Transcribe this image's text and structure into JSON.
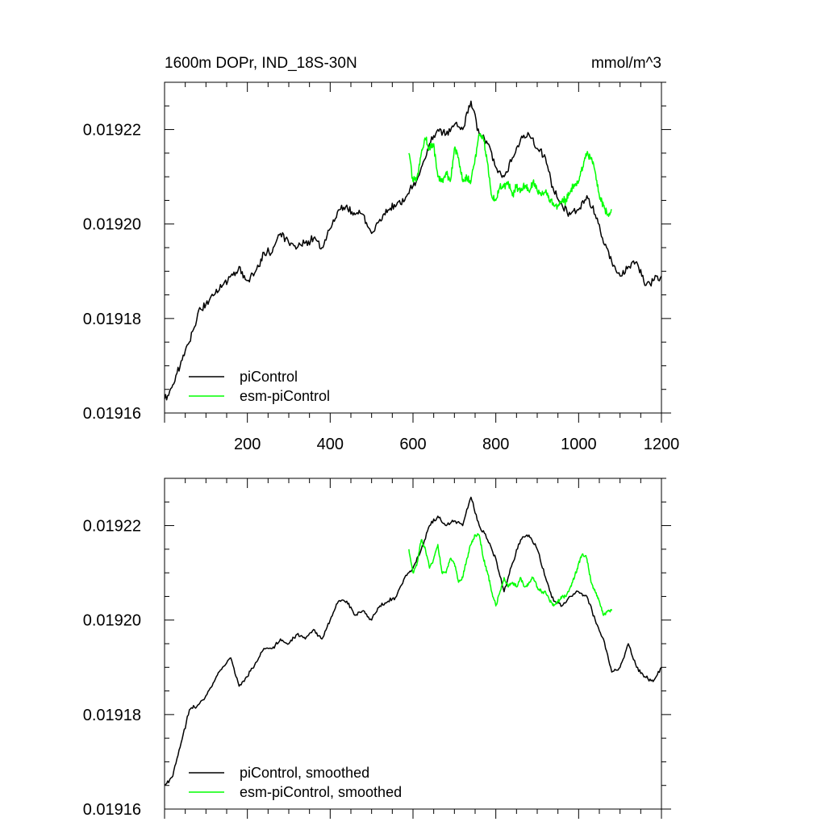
{
  "chart_data": [
    {
      "type": "line",
      "title": "1600m DOPr, IND_18S-30N",
      "units": "mmol/m^3",
      "xlim": [
        0,
        1200
      ],
      "ylim": [
        0.01916,
        0.01923
      ],
      "xticks": [
        200,
        400,
        600,
        800,
        1000,
        1200
      ],
      "xtick_labels": [
        "200",
        "400",
        "600",
        "800",
        "1000",
        "1200"
      ],
      "yticks": [
        0.01916,
        0.01918,
        0.0192,
        0.01922
      ],
      "ytick_labels": [
        "0.01916",
        "0.01918",
        "0.01920",
        "0.01922"
      ],
      "legend_position": "bottom-left",
      "series": [
        {
          "name": "piControl",
          "color": "#000000",
          "x": [
            0,
            20,
            40,
            60,
            80,
            100,
            120,
            140,
            160,
            180,
            200,
            220,
            240,
            260,
            280,
            300,
            320,
            340,
            360,
            380,
            400,
            420,
            440,
            460,
            480,
            500,
            520,
            540,
            560,
            580,
            600,
            620,
            640,
            660,
            680,
            700,
            720,
            740,
            760,
            780,
            800,
            820,
            840,
            860,
            880,
            900,
            920,
            940,
            960,
            980,
            1000,
            1020,
            1040,
            1060,
            1080,
            1100,
            1120,
            1140,
            1160,
            1180,
            1200
          ],
          "y": [
            0.019163,
            0.019166,
            0.019171,
            0.019175,
            0.019181,
            0.019183,
            0.019185,
            0.019187,
            0.019189,
            0.019191,
            0.019188,
            0.01919,
            0.019194,
            0.019194,
            0.019198,
            0.019196,
            0.019195,
            0.019196,
            0.019197,
            0.019195,
            0.019199,
            0.019203,
            0.019204,
            0.019202,
            0.019202,
            0.019198,
            0.019201,
            0.019203,
            0.019204,
            0.019205,
            0.019208,
            0.019212,
            0.019217,
            0.01922,
            0.019219,
            0.019221,
            0.01922,
            0.019226,
            0.019219,
            0.019217,
            0.019212,
            0.01921,
            0.019214,
            0.019218,
            0.019219,
            0.019216,
            0.019214,
            0.019207,
            0.019204,
            0.019202,
            0.019203,
            0.019206,
            0.019202,
            0.019196,
            0.019192,
            0.019189,
            0.019191,
            0.019192,
            0.019187,
            0.019188,
            0.019189
          ]
        },
        {
          "name": "esm-piControl",
          "color": "#00ff00",
          "x": [
            590,
            600,
            610,
            620,
            630,
            640,
            650,
            660,
            670,
            680,
            690,
            700,
            710,
            720,
            730,
            740,
            750,
            760,
            770,
            780,
            790,
            800,
            810,
            820,
            830,
            840,
            850,
            860,
            870,
            880,
            890,
            900,
            910,
            920,
            930,
            940,
            950,
            960,
            970,
            980,
            990,
            1000,
            1010,
            1020,
            1030,
            1040,
            1050,
            1060,
            1070,
            1080
          ],
          "y": [
            0.019215,
            0.019209,
            0.01921,
            0.019215,
            0.019218,
            0.019216,
            0.019217,
            0.01921,
            0.019209,
            0.019211,
            0.019209,
            0.019216,
            0.019214,
            0.019209,
            0.01921,
            0.019209,
            0.019214,
            0.019219,
            0.019218,
            0.019213,
            0.019206,
            0.019205,
            0.019208,
            0.019208,
            0.019209,
            0.019206,
            0.019208,
            0.019207,
            0.019208,
            0.019207,
            0.019209,
            0.019207,
            0.019206,
            0.019207,
            0.019205,
            0.019204,
            0.019204,
            0.019205,
            0.019205,
            0.019207,
            0.019208,
            0.019209,
            0.019212,
            0.019215,
            0.019214,
            0.019211,
            0.019206,
            0.019204,
            0.019202,
            0.019203
          ]
        }
      ]
    },
    {
      "type": "line",
      "xlim": [
        0,
        1200
      ],
      "ylim": [
        0.01916,
        0.01923
      ],
      "yticks": [
        0.01916,
        0.01918,
        0.0192,
        0.01922
      ],
      "ytick_labels": [
        "0.01916",
        "0.01918",
        "0.01920",
        "0.01922"
      ],
      "legend_position": "bottom-left",
      "series": [
        {
          "name": "piControl, smoothed",
          "color": "#000000",
          "x": [
            0,
            20,
            40,
            60,
            80,
            100,
            120,
            140,
            160,
            180,
            200,
            220,
            240,
            260,
            280,
            300,
            320,
            340,
            360,
            380,
            400,
            420,
            440,
            460,
            480,
            500,
            520,
            540,
            560,
            580,
            600,
            620,
            640,
            660,
            680,
            700,
            720,
            740,
            760,
            780,
            800,
            820,
            840,
            860,
            880,
            900,
            920,
            940,
            960,
            980,
            1000,
            1020,
            1040,
            1060,
            1080,
            1100,
            1120,
            1140,
            1160,
            1180,
            1200
          ],
          "y": [
            0.019165,
            0.019167,
            0.019174,
            0.019181,
            0.019182,
            0.019184,
            0.019187,
            0.01919,
            0.019192,
            0.019186,
            0.019188,
            0.019191,
            0.019194,
            0.019194,
            0.019196,
            0.019195,
            0.019197,
            0.019196,
            0.019198,
            0.019196,
            0.0192,
            0.019204,
            0.019204,
            0.019201,
            0.019202,
            0.0192,
            0.019203,
            0.019204,
            0.019205,
            0.019209,
            0.019211,
            0.019215,
            0.01922,
            0.019222,
            0.01922,
            0.019221,
            0.01922,
            0.019226,
            0.01922,
            0.019217,
            0.019213,
            0.019206,
            0.019212,
            0.019217,
            0.019218,
            0.019215,
            0.019209,
            0.019204,
            0.019203,
            0.019205,
            0.019206,
            0.019205,
            0.0192,
            0.019196,
            0.019189,
            0.01919,
            0.019195,
            0.01919,
            0.019188,
            0.019187,
            0.01919
          ]
        },
        {
          "name": "esm-piControl, smoothed",
          "color": "#00ff00",
          "x": [
            590,
            600,
            610,
            620,
            630,
            640,
            650,
            660,
            670,
            680,
            690,
            700,
            710,
            720,
            730,
            740,
            750,
            760,
            770,
            780,
            790,
            800,
            810,
            820,
            830,
            840,
            850,
            860,
            870,
            880,
            890,
            900,
            910,
            920,
            930,
            940,
            950,
            960,
            970,
            980,
            990,
            1000,
            1010,
            1020,
            1030,
            1040,
            1050,
            1060,
            1070,
            1080
          ],
          "y": [
            0.019215,
            0.01921,
            0.019212,
            0.019217,
            0.019215,
            0.019211,
            0.019213,
            0.019216,
            0.01921,
            0.01921,
            0.019213,
            0.019212,
            0.019208,
            0.019209,
            0.019213,
            0.019216,
            0.019218,
            0.019218,
            0.019213,
            0.01921,
            0.019206,
            0.019203,
            0.019206,
            0.019209,
            0.019207,
            0.019208,
            0.019207,
            0.019209,
            0.019207,
            0.019208,
            0.019209,
            0.019207,
            0.019206,
            0.019206,
            0.019204,
            0.019203,
            0.019204,
            0.019205,
            0.019205,
            0.019207,
            0.019209,
            0.019212,
            0.019214,
            0.019213,
            0.019208,
            0.019206,
            0.019204,
            0.019201,
            0.019202,
            0.019202
          ]
        }
      ]
    }
  ]
}
